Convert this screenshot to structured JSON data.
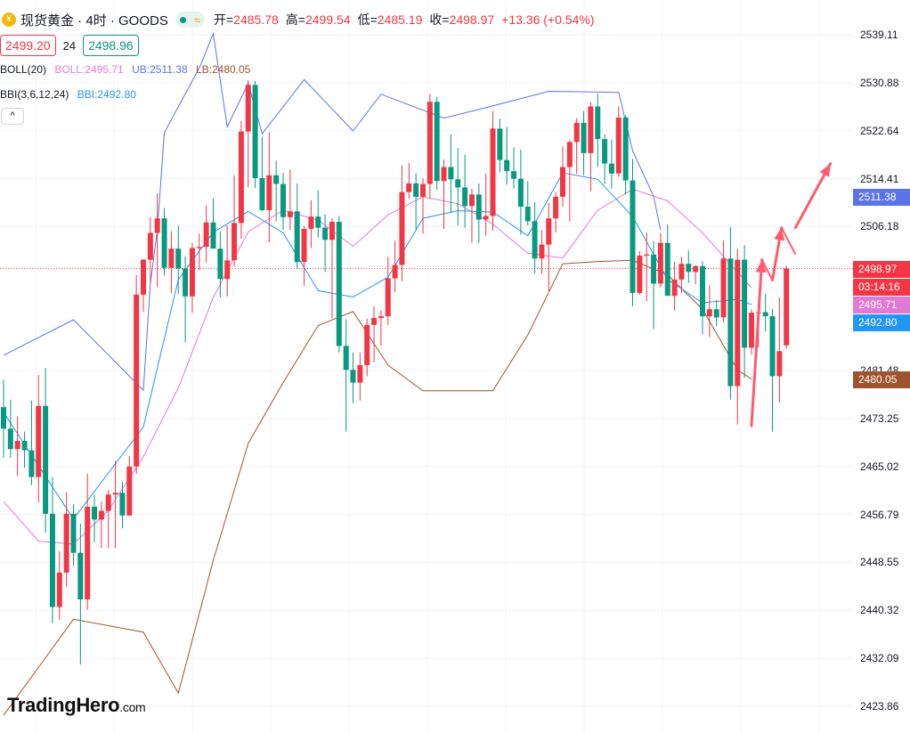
{
  "header": {
    "logo_glyph": "¥",
    "title": "现货黄金 · 4时 · GOODS",
    "status_icon": "wave-icon",
    "open_label": "开=",
    "open": "2485.78",
    "high_label": "高=",
    "high": "2499.54",
    "low_label": "低=",
    "low": "2485.19",
    "close_label": "收=",
    "close": "2498.97",
    "change": "+13.36 (+0.54%)"
  },
  "trade": {
    "sell": "2499.20",
    "spread": "24",
    "buy": "2498.96"
  },
  "indicators": {
    "boll": {
      "name": "BOLL(20)",
      "mid": "BOLL:2495.71",
      "ub": "UB:2511.38",
      "lb": "LB:2480.05"
    },
    "bbi": {
      "name": "BBI(3,6,12,24)",
      "value": "BBI:2492.80"
    },
    "collapse_glyph": "^"
  },
  "price_axis": {
    "ticks": [
      "2539.11",
      "2530.88",
      "2522.64",
      "2514.41",
      "2506.18",
      "2481.48",
      "2473.25",
      "2465.02",
      "2456.79",
      "2448.55",
      "2440.32",
      "2432.09",
      "2423.86"
    ],
    "tags": [
      {
        "label": "2511.38",
        "kind": "ub"
      },
      {
        "label": "2498.97",
        "kind": "price"
      },
      {
        "label": "03:14:16",
        "kind": "countdown"
      },
      {
        "label": "2495.71",
        "kind": "mid"
      },
      {
        "label": "2492.80",
        "kind": "bbi"
      },
      {
        "label": "2480.05",
        "kind": "lb"
      }
    ]
  },
  "colors": {
    "up": "#f23645",
    "down": "#089981",
    "ub": "#5b73e8",
    "mid": "#e07ad4",
    "lb": "#a0522d",
    "bbi": "#2196f3",
    "arrow": "#ff5a6e",
    "countdown": "#f23645"
  },
  "brand": {
    "name": "TradingHero",
    "domain": ".com"
  },
  "chart_data": {
    "type": "candlestick",
    "title": "现货黄金 · 4时 · GOODS",
    "ylim": [
      2420,
      2545
    ],
    "grid": true,
    "current_price": 2498.97,
    "candles": [
      {
        "o": 2475.2,
        "h": 2479.9,
        "l": 2466.5,
        "c": 2471.5
      },
      {
        "o": 2471.5,
        "h": 2476.5,
        "l": 2466.5,
        "c": 2468.0
      },
      {
        "o": 2468.0,
        "h": 2473.6,
        "l": 2463.4,
        "c": 2469.4
      },
      {
        "o": 2469.4,
        "h": 2471.0,
        "l": 2464.8,
        "c": 2467.8
      },
      {
        "o": 2467.8,
        "h": 2476.3,
        "l": 2461.8,
        "c": 2463.2
      },
      {
        "o": 2463.2,
        "h": 2480.7,
        "l": 2458.8,
        "c": 2475.4
      },
      {
        "o": 2475.4,
        "h": 2481.9,
        "l": 2453.6,
        "c": 2456.9
      },
      {
        "o": 2456.9,
        "h": 2463.2,
        "l": 2438.1,
        "c": 2440.9
      },
      {
        "o": 2440.9,
        "h": 2450.5,
        "l": 2438.7,
        "c": 2446.8
      },
      {
        "o": 2446.8,
        "h": 2460.6,
        "l": 2444.4,
        "c": 2456.9
      },
      {
        "o": 2456.9,
        "h": 2458.5,
        "l": 2448.0,
        "c": 2450.2
      },
      {
        "o": 2450.2,
        "h": 2455.2,
        "l": 2431.0,
        "c": 2442.2
      },
      {
        "o": 2442.2,
        "h": 2463.8,
        "l": 2440.4,
        "c": 2458.1
      },
      {
        "o": 2458.1,
        "h": 2460.2,
        "l": 2452.0,
        "c": 2455.9
      },
      {
        "o": 2455.9,
        "h": 2459.0,
        "l": 2451.0,
        "c": 2457.4
      },
      {
        "o": 2457.4,
        "h": 2461.0,
        "l": 2451.0,
        "c": 2460.2
      },
      {
        "o": 2460.2,
        "h": 2466.0,
        "l": 2451.0,
        "c": 2460.5
      },
      {
        "o": 2460.5,
        "h": 2462.4,
        "l": 2454.4,
        "c": 2456.6
      },
      {
        "o": 2456.6,
        "h": 2466.8,
        "l": 2456.5,
        "c": 2465.0
      },
      {
        "o": 2465.0,
        "h": 2497.9,
        "l": 2463.8,
        "c": 2494.5
      },
      {
        "o": 2494.5,
        "h": 2500.6,
        "l": 2491.5,
        "c": 2500.5
      },
      {
        "o": 2500.5,
        "h": 2507.8,
        "l": 2496.4,
        "c": 2505.1
      },
      {
        "o": 2505.1,
        "h": 2511.9,
        "l": 2495.8,
        "c": 2507.6
      },
      {
        "o": 2507.6,
        "h": 2509.4,
        "l": 2497.8,
        "c": 2499.1
      },
      {
        "o": 2499.1,
        "h": 2505.4,
        "l": 2494.8,
        "c": 2502.4
      },
      {
        "o": 2502.4,
        "h": 2506.3,
        "l": 2494.6,
        "c": 2499.0
      },
      {
        "o": 2499.0,
        "h": 2501.1,
        "l": 2486.3,
        "c": 2494.2
      },
      {
        "o": 2494.2,
        "h": 2503.4,
        "l": 2491.4,
        "c": 2502.5
      },
      {
        "o": 2502.5,
        "h": 2505.0,
        "l": 2498.7,
        "c": 2502.7
      },
      {
        "o": 2502.7,
        "h": 2509.8,
        "l": 2500.0,
        "c": 2506.9
      },
      {
        "o": 2506.9,
        "h": 2511.0,
        "l": 2503.6,
        "c": 2502.4
      },
      {
        "o": 2502.4,
        "h": 2505.4,
        "l": 2494.0,
        "c": 2497.2
      },
      {
        "o": 2497.2,
        "h": 2506.4,
        "l": 2494.2,
        "c": 2500.4
      },
      {
        "o": 2500.4,
        "h": 2515.0,
        "l": 2499.3,
        "c": 2506.8
      },
      {
        "o": 2506.8,
        "h": 2524.3,
        "l": 2504.1,
        "c": 2522.5
      },
      {
        "o": 2522.5,
        "h": 2531.3,
        "l": 2512.9,
        "c": 2530.5
      },
      {
        "o": 2530.5,
        "h": 2531.2,
        "l": 2512.8,
        "c": 2514.5
      },
      {
        "o": 2514.5,
        "h": 2521.6,
        "l": 2508.8,
        "c": 2509.0
      },
      {
        "o": 2509.0,
        "h": 2522.4,
        "l": 2503.5,
        "c": 2515.0
      },
      {
        "o": 2515.0,
        "h": 2517.5,
        "l": 2507.1,
        "c": 2513.5
      },
      {
        "o": 2513.5,
        "h": 2515.4,
        "l": 2505.6,
        "c": 2507.8
      },
      {
        "o": 2507.8,
        "h": 2516.0,
        "l": 2505.6,
        "c": 2508.8
      },
      {
        "o": 2508.8,
        "h": 2513.6,
        "l": 2498.9,
        "c": 2500.1
      },
      {
        "o": 2500.1,
        "h": 2506.3,
        "l": 2496.0,
        "c": 2505.8
      },
      {
        "o": 2505.8,
        "h": 2510.7,
        "l": 2502.5,
        "c": 2507.9
      },
      {
        "o": 2507.9,
        "h": 2512.4,
        "l": 2504.3,
        "c": 2506.0
      },
      {
        "o": 2506.0,
        "h": 2508.3,
        "l": 2498.4,
        "c": 2503.9
      },
      {
        "o": 2503.9,
        "h": 2507.6,
        "l": 2490.4,
        "c": 2507.0
      },
      {
        "o": 2507.0,
        "h": 2508.0,
        "l": 2484.6,
        "c": 2485.7
      },
      {
        "o": 2485.7,
        "h": 2490.3,
        "l": 2471.0,
        "c": 2481.6
      },
      {
        "o": 2481.6,
        "h": 2484.6,
        "l": 2475.9,
        "c": 2479.4
      },
      {
        "o": 2479.4,
        "h": 2484.6,
        "l": 2476.3,
        "c": 2482.4
      },
      {
        "o": 2482.4,
        "h": 2490.4,
        "l": 2480.5,
        "c": 2489.3
      },
      {
        "o": 2489.3,
        "h": 2492.5,
        "l": 2482.9,
        "c": 2490.5
      },
      {
        "o": 2490.5,
        "h": 2491.8,
        "l": 2485.7,
        "c": 2490.8
      },
      {
        "o": 2490.8,
        "h": 2501.0,
        "l": 2489.3,
        "c": 2497.3
      },
      {
        "o": 2497.3,
        "h": 2503.7,
        "l": 2494.9,
        "c": 2499.6
      },
      {
        "o": 2499.6,
        "h": 2516.7,
        "l": 2496.8,
        "c": 2512.1
      },
      {
        "o": 2512.1,
        "h": 2517.1,
        "l": 2511.0,
        "c": 2513.6
      },
      {
        "o": 2513.6,
        "h": 2515.3,
        "l": 2505.7,
        "c": 2511.3
      },
      {
        "o": 2511.3,
        "h": 2514.5,
        "l": 2505.0,
        "c": 2513.5
      },
      {
        "o": 2513.5,
        "h": 2529.0,
        "l": 2511.0,
        "c": 2527.6
      },
      {
        "o": 2527.6,
        "h": 2528.4,
        "l": 2512.5,
        "c": 2514.0
      },
      {
        "o": 2514.0,
        "h": 2517.7,
        "l": 2505.8,
        "c": 2516.4
      },
      {
        "o": 2516.4,
        "h": 2522.0,
        "l": 2508.5,
        "c": 2514.3
      },
      {
        "o": 2514.3,
        "h": 2519.7,
        "l": 2506.4,
        "c": 2512.9
      },
      {
        "o": 2512.9,
        "h": 2518.5,
        "l": 2506.0,
        "c": 2509.7
      },
      {
        "o": 2509.7,
        "h": 2512.7,
        "l": 2503.4,
        "c": 2511.7
      },
      {
        "o": 2511.7,
        "h": 2513.6,
        "l": 2503.4,
        "c": 2507.4
      },
      {
        "o": 2507.4,
        "h": 2515.3,
        "l": 2504.6,
        "c": 2508.0
      },
      {
        "o": 2508.0,
        "h": 2526.0,
        "l": 2505.5,
        "c": 2523.0
      },
      {
        "o": 2523.0,
        "h": 2524.7,
        "l": 2515.5,
        "c": 2517.6
      },
      {
        "o": 2517.6,
        "h": 2523.3,
        "l": 2513.4,
        "c": 2515.7
      },
      {
        "o": 2515.7,
        "h": 2519.8,
        "l": 2512.7,
        "c": 2514.4
      },
      {
        "o": 2514.4,
        "h": 2519.4,
        "l": 2504.8,
        "c": 2509.6
      },
      {
        "o": 2509.6,
        "h": 2514.0,
        "l": 2506.4,
        "c": 2507.1
      },
      {
        "o": 2507.1,
        "h": 2510.4,
        "l": 2498.1,
        "c": 2500.7
      },
      {
        "o": 2500.7,
        "h": 2505.6,
        "l": 2498.1,
        "c": 2503.1
      },
      {
        "o": 2503.1,
        "h": 2510.3,
        "l": 2495.1,
        "c": 2507.6
      },
      {
        "o": 2507.6,
        "h": 2512.1,
        "l": 2505.2,
        "c": 2511.3
      },
      {
        "o": 2511.3,
        "h": 2519.9,
        "l": 2509.6,
        "c": 2516.4
      },
      {
        "o": 2516.4,
        "h": 2521.0,
        "l": 2507.1,
        "c": 2520.7
      },
      {
        "o": 2520.7,
        "h": 2524.8,
        "l": 2515.2,
        "c": 2524.0
      },
      {
        "o": 2524.0,
        "h": 2526.0,
        "l": 2515.0,
        "c": 2518.8
      },
      {
        "o": 2518.8,
        "h": 2527.6,
        "l": 2512.2,
        "c": 2526.8
      },
      {
        "o": 2526.8,
        "h": 2529.0,
        "l": 2516.4,
        "c": 2521.2
      },
      {
        "o": 2521.2,
        "h": 2522.0,
        "l": 2513.5,
        "c": 2517.0
      },
      {
        "o": 2517.0,
        "h": 2521.1,
        "l": 2512.7,
        "c": 2515.3
      },
      {
        "o": 2515.3,
        "h": 2526.8,
        "l": 2514.7,
        "c": 2524.9
      },
      {
        "o": 2524.9,
        "h": 2525.3,
        "l": 2511.7,
        "c": 2514.1
      },
      {
        "o": 2514.1,
        "h": 2517.8,
        "l": 2492.5,
        "c": 2494.8
      },
      {
        "o": 2494.8,
        "h": 2502.0,
        "l": 2494.5,
        "c": 2501.2
      },
      {
        "o": 2501.2,
        "h": 2505.2,
        "l": 2493.4,
        "c": 2501.4
      },
      {
        "o": 2501.4,
        "h": 2503.7,
        "l": 2488.6,
        "c": 2496.4
      },
      {
        "o": 2496.4,
        "h": 2505.1,
        "l": 2495.7,
        "c": 2503.4
      },
      {
        "o": 2503.4,
        "h": 2506.5,
        "l": 2494.5,
        "c": 2494.3
      },
      {
        "o": 2494.3,
        "h": 2500.1,
        "l": 2491.8,
        "c": 2497.1
      },
      {
        "o": 2497.1,
        "h": 2501.0,
        "l": 2494.8,
        "c": 2499.8
      },
      {
        "o": 2499.8,
        "h": 2502.1,
        "l": 2496.5,
        "c": 2498.4
      },
      {
        "o": 2498.4,
        "h": 2499.6,
        "l": 2496.3,
        "c": 2499.4
      },
      {
        "o": 2499.4,
        "h": 2500.2,
        "l": 2487.7,
        "c": 2490.8
      },
      {
        "o": 2490.8,
        "h": 2496.1,
        "l": 2487.2,
        "c": 2492.0
      },
      {
        "o": 2492.0,
        "h": 2493.6,
        "l": 2489.1,
        "c": 2490.6
      },
      {
        "o": 2490.6,
        "h": 2503.8,
        "l": 2489.7,
        "c": 2500.7
      },
      {
        "o": 2500.7,
        "h": 2506.1,
        "l": 2476.5,
        "c": 2478.8
      },
      {
        "o": 2478.8,
        "h": 2502.4,
        "l": 2472.2,
        "c": 2500.5
      },
      {
        "o": 2500.5,
        "h": 2503.0,
        "l": 2480.2,
        "c": 2485.4
      },
      {
        "o": 2485.4,
        "h": 2492.0,
        "l": 2484.2,
        "c": 2491.4
      },
      {
        "o": 2491.4,
        "h": 2492.8,
        "l": 2485.5,
        "c": 2491.5
      },
      {
        "o": 2491.5,
        "h": 2494.6,
        "l": 2488.2,
        "c": 2490.8
      },
      {
        "o": 2490.8,
        "h": 2492.1,
        "l": 2471.0,
        "c": 2480.5
      },
      {
        "o": 2480.5,
        "h": 2494.0,
        "l": 2476.0,
        "c": 2484.8
      },
      {
        "o": 2485.8,
        "h": 2499.5,
        "l": 2485.2,
        "c": 2499.0
      }
    ],
    "bollinger": {
      "ub_x_index": [
        0,
        10,
        20,
        21,
        22,
        23,
        28,
        30,
        32,
        35,
        37,
        43,
        50,
        54,
        63,
        70,
        78,
        88,
        90,
        93,
        94
      ],
      "ub": [
        2484.1,
        2490.2,
        2478.1,
        2496.3,
        2505.6,
        2522.3,
        2533.4,
        2539.3,
        2523.3,
        2530.8,
        2522.1,
        2531.4,
        2522.6,
        2528.9,
        2524.8,
        2526.9,
        2529.4,
        2529.2,
        2519.2,
        2511.4,
        2505.6
      ],
      "mid_x_index": [
        0,
        5,
        10,
        15,
        20,
        25,
        30,
        35,
        40,
        45,
        50,
        55,
        60,
        65,
        70,
        75,
        80,
        85,
        90,
        95,
        100,
        107
      ],
      "mid": [
        2459.0,
        2452.2,
        2451.7,
        2457.5,
        2466.7,
        2478.5,
        2494.0,
        2505.3,
        2509.0,
        2507.3,
        2502.8,
        2508.2,
        2511.3,
        2510.1,
        2506.6,
        2501.6,
        2500.8,
        2509.0,
        2512.6,
        2510.6,
        2505.1,
        2495.7
      ],
      "lb_x_index": [
        0,
        10,
        20,
        25,
        30,
        35,
        40,
        45,
        50,
        55,
        60,
        65,
        70,
        75,
        80,
        85,
        90,
        95,
        100,
        105,
        107
      ],
      "lb": [
        2422.3,
        2438.8,
        2436.6,
        2426.1,
        2448.9,
        2469.0,
        2479.4,
        2489.2,
        2491.6,
        2482.4,
        2478.0,
        2478.0,
        2478.0,
        2487.6,
        2499.8,
        2500.2,
        2500.4,
        2497.9,
        2492.0,
        2481.6,
        2480.0
      ]
    },
    "bbi": {
      "x_index": [
        0,
        10,
        20,
        25,
        30,
        35,
        40,
        45,
        50,
        55,
        60,
        65,
        70,
        75,
        80,
        85,
        90,
        95,
        100,
        105,
        107
      ],
      "values": [
        2474.3,
        2456.0,
        2471.8,
        2497.1,
        2505.2,
        2508.8,
        2505.1,
        2495.2,
        2494.1,
        2497.5,
        2507.6,
        2508.9,
        2508.7,
        2504.6,
        2515.4,
        2514.3,
        2507.9,
        2497.1,
        2493.1,
        2493.7,
        2492.8
      ]
    },
    "projection_arrows": [
      {
        "from": [
          2472.0
        ],
        "to": [
          2500.5
        ]
      },
      {
        "from": [
          2497.0
        ],
        "to": [
          2506.0
        ]
      },
      {
        "from": [
          2506.0
        ],
        "to": [
          2517.0
        ]
      }
    ]
  }
}
